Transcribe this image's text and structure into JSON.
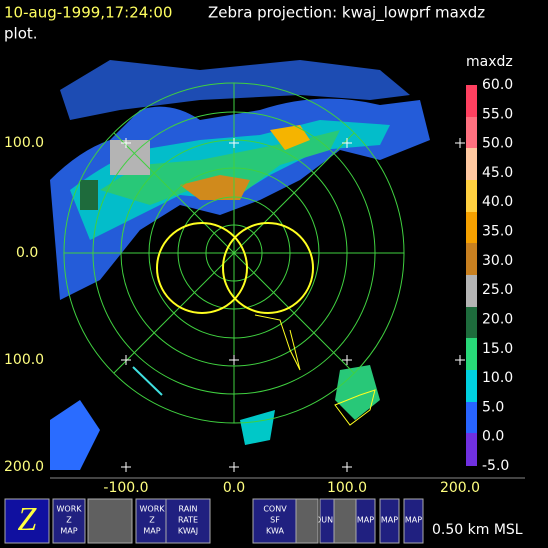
{
  "header": {
    "timestamp": "10-aug-1999,17:24:00",
    "title": "Zebra projection: kwaj_lowprf maxdz",
    "title_cont": "plot."
  },
  "plot": {
    "y_labels": [
      "100.0",
      "0.0",
      "100.0",
      "200.0"
    ],
    "x_labels": [
      "-100.0",
      "0.0",
      "100.0",
      "200.0"
    ]
  },
  "colorbar": {
    "title": "maxdz",
    "labels": [
      "60.0",
      "55.0",
      "50.0",
      "45.0",
      "40.0",
      "35.0",
      "30.0",
      "25.0",
      "20.0",
      "15.0",
      "10.0",
      "5.0",
      "0.0",
      "-5.0"
    ]
  },
  "toolbar": {
    "buttons": [
      {
        "lines": [
          "WORK",
          "Z",
          "MAP"
        ]
      },
      {
        "lines": [
          "WORK",
          "Z",
          "MAP"
        ]
      },
      {
        "lines": [
          "RAIN",
          "RATE",
          "KWAJ"
        ]
      },
      {
        "lines": [
          "CONV",
          "SF",
          "KWA"
        ]
      },
      {
        "lines": [
          "BOUNDS"
        ]
      },
      {
        "lines": [
          "MAP"
        ]
      },
      {
        "lines": [
          "MAP"
        ]
      },
      {
        "lines": [
          "MAP"
        ]
      }
    ],
    "status": "0.50 km MSL"
  }
}
